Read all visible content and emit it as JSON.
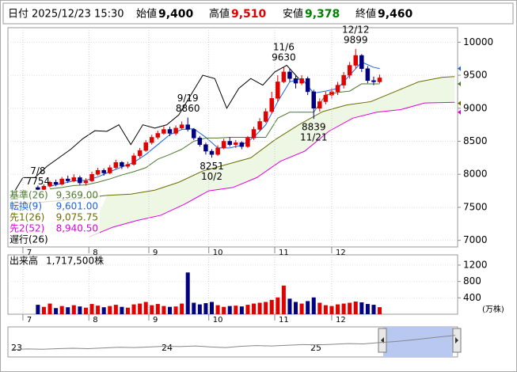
{
  "header": {
    "date_label": "日付",
    "datetime": "2025/12/23 15:30",
    "open_label": "始値",
    "open": "9,400",
    "high_label": "高値",
    "high": "9,510",
    "low_label": "安値",
    "low": "9,378",
    "close_label": "終値",
    "close": "9,460"
  },
  "chart_data": {
    "type": "candlestick",
    "up_color": "#e00000",
    "down_color": "#000080",
    "xlim": [
      -5,
      145
    ],
    "ylim": [
      6900,
      10220
    ],
    "yticks": [
      7000,
      7500,
      8000,
      8500,
      9000,
      9500,
      10000
    ],
    "xticks": [
      {
        "value": 0,
        "label": "7"
      },
      {
        "value": 22,
        "label": "8"
      },
      {
        "value": 42,
        "label": "9"
      },
      {
        "value": 62,
        "label": "10"
      },
      {
        "value": 84,
        "label": "11"
      },
      {
        "value": 103,
        "label": "12"
      }
    ],
    "grid": true,
    "x": [
      5,
      7,
      9,
      11,
      13,
      15,
      17,
      19,
      21,
      23,
      25,
      27,
      29,
      31,
      33,
      35,
      37,
      39,
      41,
      43,
      45,
      47,
      49,
      51,
      53,
      55,
      57,
      59,
      61,
      63,
      65,
      67,
      69,
      71,
      73,
      75,
      77,
      79,
      81,
      83,
      85,
      87,
      89,
      91,
      93,
      95,
      97,
      99,
      101,
      103,
      105,
      107,
      109,
      111,
      113,
      115,
      117,
      119
    ],
    "open": [
      7800,
      7770,
      7820,
      7880,
      7850,
      7930,
      7900,
      7950,
      7870,
      7900,
      8000,
      8060,
      8020,
      8100,
      8180,
      8120,
      8150,
      8280,
      8360,
      8480,
      8560,
      8620,
      8680,
      8620,
      8700,
      8750,
      8680,
      8550,
      8450,
      8350,
      8300,
      8400,
      8500,
      8450,
      8480,
      8420,
      8550,
      8680,
      8800,
      8950,
      9150,
      9400,
      9550,
      9450,
      9380,
      9450,
      9250,
      9000,
      9100,
      9200,
      9250,
      9350,
      9500,
      9650,
      9800,
      9600,
      9420,
      9400
    ],
    "high": [
      7830,
      7850,
      7900,
      7920,
      7960,
      7980,
      8000,
      7980,
      7940,
      8040,
      8100,
      8090,
      8140,
      8220,
      8200,
      8190,
      8320,
      8400,
      8520,
      8600,
      8660,
      8730,
      8720,
      8740,
      8800,
      8860,
      8700,
      8580,
      8480,
      8380,
      8440,
      8540,
      8560,
      8520,
      8500,
      8580,
      8720,
      8850,
      9000,
      9250,
      9500,
      9630,
      9600,
      9500,
      9500,
      9480,
      9280,
      9150,
      9250,
      9300,
      9400,
      9550,
      9700,
      9899,
      9820,
      9640,
      9480,
      9510
    ],
    "low": [
      7754,
      7760,
      7800,
      7820,
      7830,
      7870,
      7880,
      7840,
      7830,
      7880,
      7980,
      7980,
      8000,
      8080,
      8080,
      8090,
      8130,
      8250,
      8340,
      8450,
      8530,
      8600,
      8580,
      8590,
      8680,
      8650,
      8520,
      8420,
      8300,
      8251,
      8280,
      8380,
      8420,
      8400,
      8380,
      8400,
      8520,
      8650,
      8780,
      8920,
      9100,
      9380,
      9400,
      9300,
      9350,
      9200,
      8839,
      8950,
      9060,
      9150,
      9200,
      9300,
      9450,
      9600,
      9550,
      9380,
      9350,
      9378
    ],
    "close": [
      7770,
      7820,
      7880,
      7850,
      7930,
      7900,
      7950,
      7870,
      7900,
      8000,
      8060,
      8020,
      8100,
      8180,
      8120,
      8150,
      8280,
      8360,
      8480,
      8560,
      8620,
      8680,
      8620,
      8700,
      8750,
      8680,
      8550,
      8450,
      8350,
      8300,
      8400,
      8500,
      8450,
      8480,
      8420,
      8550,
      8680,
      8800,
      8950,
      9150,
      9400,
      9550,
      9450,
      9380,
      9450,
      9250,
      9000,
      9100,
      9200,
      9250,
      9350,
      9500,
      9650,
      9800,
      9600,
      9420,
      9400,
      9460
    ],
    "series": [
      {
        "name": "基準(26)",
        "color": "#4c7a2e",
        "legend_value": {
          "value": 9369,
          "label": "9,369.00"
        },
        "x": [
          9,
          13,
          17,
          21,
          25,
          29,
          33,
          37,
          41,
          45,
          49,
          53,
          57,
          61,
          65,
          69,
          73,
          77,
          81,
          85,
          89,
          93,
          97,
          101,
          105,
          109,
          113,
          117,
          119
        ],
        "values": [
          7780,
          7800,
          7830,
          7840,
          7880,
          7930,
          7990,
          8040,
          8100,
          8230,
          8300,
          8380,
          8500,
          8550,
          8550,
          8560,
          8560,
          8560,
          8560,
          8850,
          8940,
          8940,
          8940,
          9200,
          9240,
          9260,
          9370,
          9369,
          9369
        ]
      },
      {
        "name": "転換(9)",
        "color": "#1e64dc",
        "legend_value": {
          "value": 9601,
          "label": "9,601.00"
        },
        "x": [
          9,
          13,
          17,
          21,
          25,
          29,
          33,
          37,
          41,
          45,
          49,
          53,
          57,
          61,
          65,
          69,
          73,
          77,
          81,
          85,
          89,
          93,
          97,
          101,
          105,
          109,
          113,
          117,
          119
        ],
        "values": [
          7820,
          7860,
          7900,
          7910,
          7960,
          8040,
          8110,
          8180,
          8300,
          8450,
          8600,
          8680,
          8690,
          8560,
          8400,
          8400,
          8440,
          8560,
          8750,
          9100,
          9400,
          9450,
          9230,
          9260,
          9300,
          9500,
          9700,
          9620,
          9601
        ]
      },
      {
        "name": "先1(26)",
        "color": "#6b6b00",
        "legend_value": {
          "value": 9075.75,
          "label": "9,075.75"
        },
        "x": [
          -4,
          4,
          12,
          20,
          28,
          36,
          44,
          52,
          60,
          68,
          76,
          84,
          92,
          100,
          108,
          116,
          124,
          132,
          140,
          144
        ],
        "values": [
          7550,
          7570,
          7600,
          7640,
          7680,
          7700,
          7760,
          7880,
          8050,
          8150,
          8250,
          8520,
          8750,
          8950,
          9050,
          9100,
          9250,
          9400,
          9470,
          9480
        ]
      },
      {
        "name": "先2(52)",
        "color": "#e000e0",
        "legend_value": {
          "value": 8940.5,
          "label": "8,940.50"
        },
        "x": [
          22,
          30,
          38,
          46,
          54,
          62,
          70,
          78,
          86,
          94,
          102,
          110,
          118,
          126,
          134,
          144
        ],
        "values": [
          7050,
          7200,
          7300,
          7380,
          7550,
          7750,
          7800,
          7950,
          8200,
          8350,
          8650,
          8850,
          8940,
          8980,
          9080,
          9090
        ]
      },
      {
        "name": "遅行(26)",
        "color": "#000000",
        "x": [
          -4,
          0,
          4,
          8,
          12,
          16,
          20,
          24,
          28,
          32,
          36,
          40,
          44,
          48,
          52,
          56,
          60,
          64,
          68,
          72,
          76,
          80,
          84,
          88,
          92
        ],
        "values": [
          7650,
          7950,
          7950,
          8120,
          8250,
          8380,
          8540,
          8660,
          8650,
          8750,
          8450,
          8750,
          8700,
          8750,
          8900,
          9200,
          9500,
          9450,
          9000,
          9300,
          9450,
          9350,
          9550,
          9650,
          9450
        ]
      }
    ],
    "cloud_color": "#eef6e4",
    "annotations": [
      {
        "date": "7/8",
        "value": 7754,
        "x": 5,
        "position": "above"
      },
      {
        "date": "9/19",
        "value": 8860,
        "x": 55,
        "position": "above"
      },
      {
        "date": "11/6",
        "value": 9630,
        "x": 87,
        "position": "above"
      },
      {
        "date": "12/12",
        "value": 9899,
        "x": 111,
        "position": "above"
      },
      {
        "date": "10/2",
        "value": 8251,
        "x": 63,
        "position": "below"
      },
      {
        "date": "11/21",
        "value": 8839,
        "x": 97,
        "position": "below"
      }
    ]
  },
  "volume": {
    "title": "出来高",
    "last": "1,717,500株",
    "unit": "(万株)",
    "ylim": [
      0,
      1450
    ],
    "yticks": [
      400,
      800,
      1200
    ],
    "values": [
      230,
      180,
      260,
      150,
      200,
      170,
      220,
      190,
      160,
      250,
      210,
      170,
      200,
      230,
      180,
      160,
      240,
      260,
      300,
      220,
      250,
      200,
      180,
      190,
      260,
      1020,
      280,
      240,
      270,
      300,
      220,
      180,
      200,
      210,
      190,
      230,
      260,
      280,
      300,
      350,
      410,
      700,
      380,
      300,
      260,
      320,
      410,
      280,
      220,
      200,
      240,
      260,
      280,
      310,
      290,
      250,
      230,
      171.75
    ]
  },
  "navigator": {
    "labels": [
      "23",
      "24",
      "25"
    ],
    "ylim": [
      3000,
      12000
    ],
    "values": [
      5200,
      5400,
      5300,
      5500,
      5600,
      5500,
      5700,
      5900,
      5800,
      6000,
      6200,
      6100,
      6300,
      6000,
      5800,
      6200,
      6400,
      6300,
      6500,
      6700,
      6600,
      6800,
      7000,
      6900,
      7300,
      7600,
      8000,
      8500,
      9000,
      9460
    ]
  }
}
